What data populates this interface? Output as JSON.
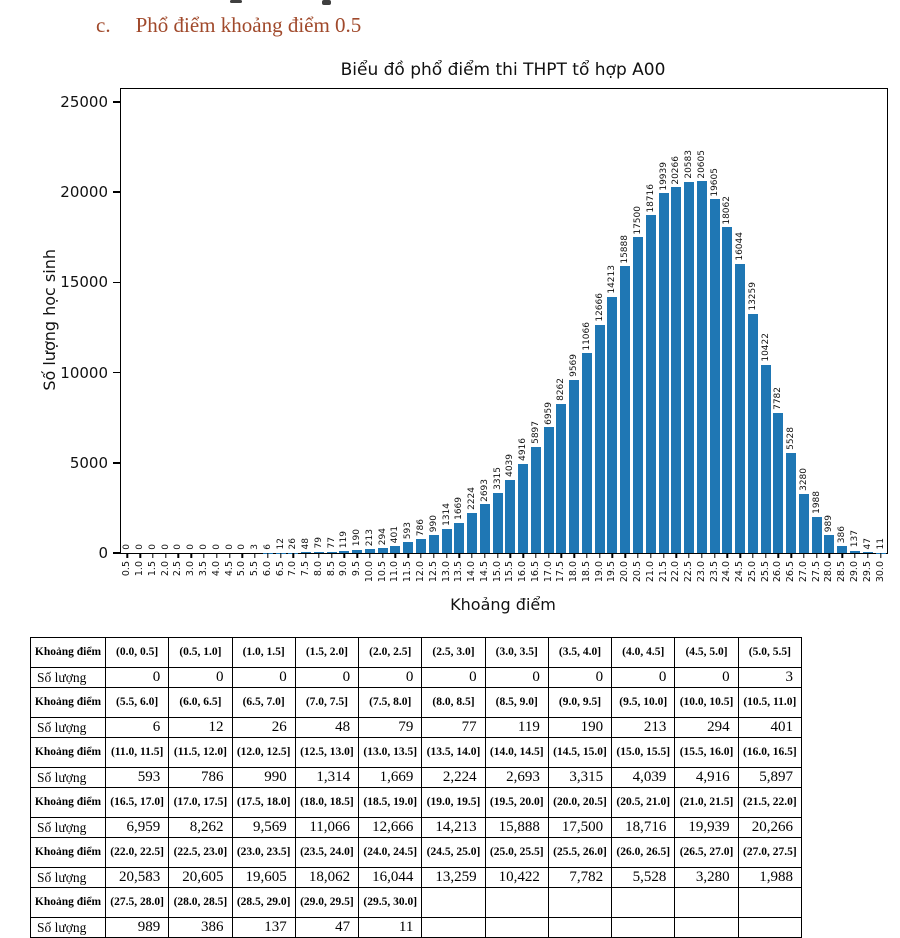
{
  "heading": {
    "marker": "c.",
    "text": "Phổ điểm khoảng điểm 0.5",
    "color": "#A0492B"
  },
  "chart_data": {
    "type": "bar",
    "title": "Biểu đồ phổ điểm thi THPT tổ hợp A00",
    "xlabel": "Khoảng điểm",
    "ylabel": "Số lượng học sinh",
    "ylim": [
      0,
      25000
    ],
    "yticks": [
      0,
      5000,
      10000,
      15000,
      20000,
      25000
    ],
    "grid": false,
    "legend": "none",
    "bar_color": "#1f77b4",
    "categories": [
      "0.5",
      "1.0",
      "1.5",
      "2.0",
      "2.5",
      "3.0",
      "3.5",
      "4.0",
      "4.5",
      "5.0",
      "5.5",
      "6.0",
      "6.5",
      "7.0",
      "7.5",
      "8.0",
      "8.5",
      "9.0",
      "9.5",
      "10.0",
      "10.5",
      "11.0",
      "11.5",
      "12.0",
      "12.5",
      "13.0",
      "13.5",
      "14.0",
      "14.5",
      "15.0",
      "15.5",
      "16.0",
      "16.5",
      "17.0",
      "17.5",
      "18.0",
      "18.5",
      "19.0",
      "19.5",
      "20.0",
      "20.5",
      "21.0",
      "21.5",
      "22.0",
      "22.5",
      "23.0",
      "23.5",
      "24.0",
      "24.5",
      "25.0",
      "25.5",
      "26.0",
      "26.5",
      "27.0",
      "27.5",
      "28.0",
      "28.5",
      "29.0",
      "29.5",
      "30.0"
    ],
    "values": [
      0,
      0,
      0,
      0,
      0,
      0,
      0,
      0,
      0,
      0,
      3,
      6,
      12,
      26,
      48,
      79,
      77,
      119,
      190,
      213,
      294,
      401,
      593,
      786,
      990,
      1314,
      1669,
      2224,
      2693,
      3315,
      4039,
      4916,
      5897,
      6959,
      8262,
      9569,
      11066,
      12666,
      14213,
      15888,
      17500,
      18716,
      19939,
      20266,
      20583,
      20605,
      19605,
      18062,
      16044,
      13259,
      10422,
      7782,
      5528,
      3280,
      1988,
      989,
      386,
      137,
      47,
      11
    ]
  },
  "table": {
    "interval_row_label": "Khoảng điểm",
    "count_row_label": "Số lượng",
    "groups": [
      {
        "intervals": [
          "(0.0, 0.5]",
          "(0.5, 1.0]",
          "(1.0, 1.5]",
          "(1.5, 2.0]",
          "(2.0, 2.5]",
          "(2.5, 3.0]",
          "(3.0, 3.5]",
          "(3.5, 4.0]",
          "(4.0, 4.5]",
          "(4.5, 5.0]",
          "(5.0, 5.5]"
        ],
        "counts": [
          "0",
          "0",
          "0",
          "0",
          "0",
          "0",
          "0",
          "0",
          "0",
          "0",
          "3"
        ]
      },
      {
        "intervals": [
          "(5.5, 6.0]",
          "(6.0, 6.5]",
          "(6.5, 7.0]",
          "(7.0, 7.5]",
          "(7.5, 8.0]",
          "(8.0, 8.5]",
          "(8.5, 9.0]",
          "(9.0, 9.5]",
          "(9.5, 10.0]",
          "(10.0, 10.5]",
          "(10.5, 11.0]"
        ],
        "counts": [
          "6",
          "12",
          "26",
          "48",
          "79",
          "77",
          "119",
          "190",
          "213",
          "294",
          "401"
        ]
      },
      {
        "intervals": [
          "(11.0, 11.5]",
          "(11.5, 12.0]",
          "(12.0, 12.5]",
          "(12.5, 13.0]",
          "(13.0, 13.5]",
          "(13.5, 14.0]",
          "(14.0, 14.5]",
          "(14.5, 15.0]",
          "(15.0, 15.5]",
          "(15.5, 16.0]",
          "(16.0, 16.5]"
        ],
        "counts": [
          "593",
          "786",
          "990",
          "1,314",
          "1,669",
          "2,224",
          "2,693",
          "3,315",
          "4,039",
          "4,916",
          "5,897"
        ]
      },
      {
        "intervals": [
          "(16.5, 17.0]",
          "(17.0, 17.5]",
          "(17.5, 18.0]",
          "(18.0, 18.5]",
          "(18.5, 19.0]",
          "(19.0, 19.5]",
          "(19.5, 20.0]",
          "(20.0, 20.5]",
          "(20.5, 21.0]",
          "(21.0, 21.5]",
          "(21.5, 22.0]"
        ],
        "counts": [
          "6,959",
          "8,262",
          "9,569",
          "11,066",
          "12,666",
          "14,213",
          "15,888",
          "17,500",
          "18,716",
          "19,939",
          "20,266"
        ]
      },
      {
        "intervals": [
          "(22.0, 22.5]",
          "(22.5, 23.0]",
          "(23.0, 23.5]",
          "(23.5, 24.0]",
          "(24.0, 24.5]",
          "(24.5, 25.0]",
          "(25.0, 25.5]",
          "(25.5, 26.0]",
          "(26.0, 26.5]",
          "(26.5, 27.0]",
          "(27.0, 27.5]"
        ],
        "counts": [
          "20,583",
          "20,605",
          "19,605",
          "18,062",
          "16,044",
          "13,259",
          "10,422",
          "7,782",
          "5,528",
          "3,280",
          "1,988"
        ]
      },
      {
        "intervals": [
          "(27.5, 28.0]",
          "(28.0, 28.5]",
          "(28.5, 29.0]",
          "(29.0, 29.5]",
          "(29.5, 30.0]",
          "",
          "",
          "",
          "",
          "",
          ""
        ],
        "counts": [
          "989",
          "386",
          "137",
          "47",
          "11",
          "",
          "",
          "",
          "",
          "",
          ""
        ]
      }
    ]
  }
}
